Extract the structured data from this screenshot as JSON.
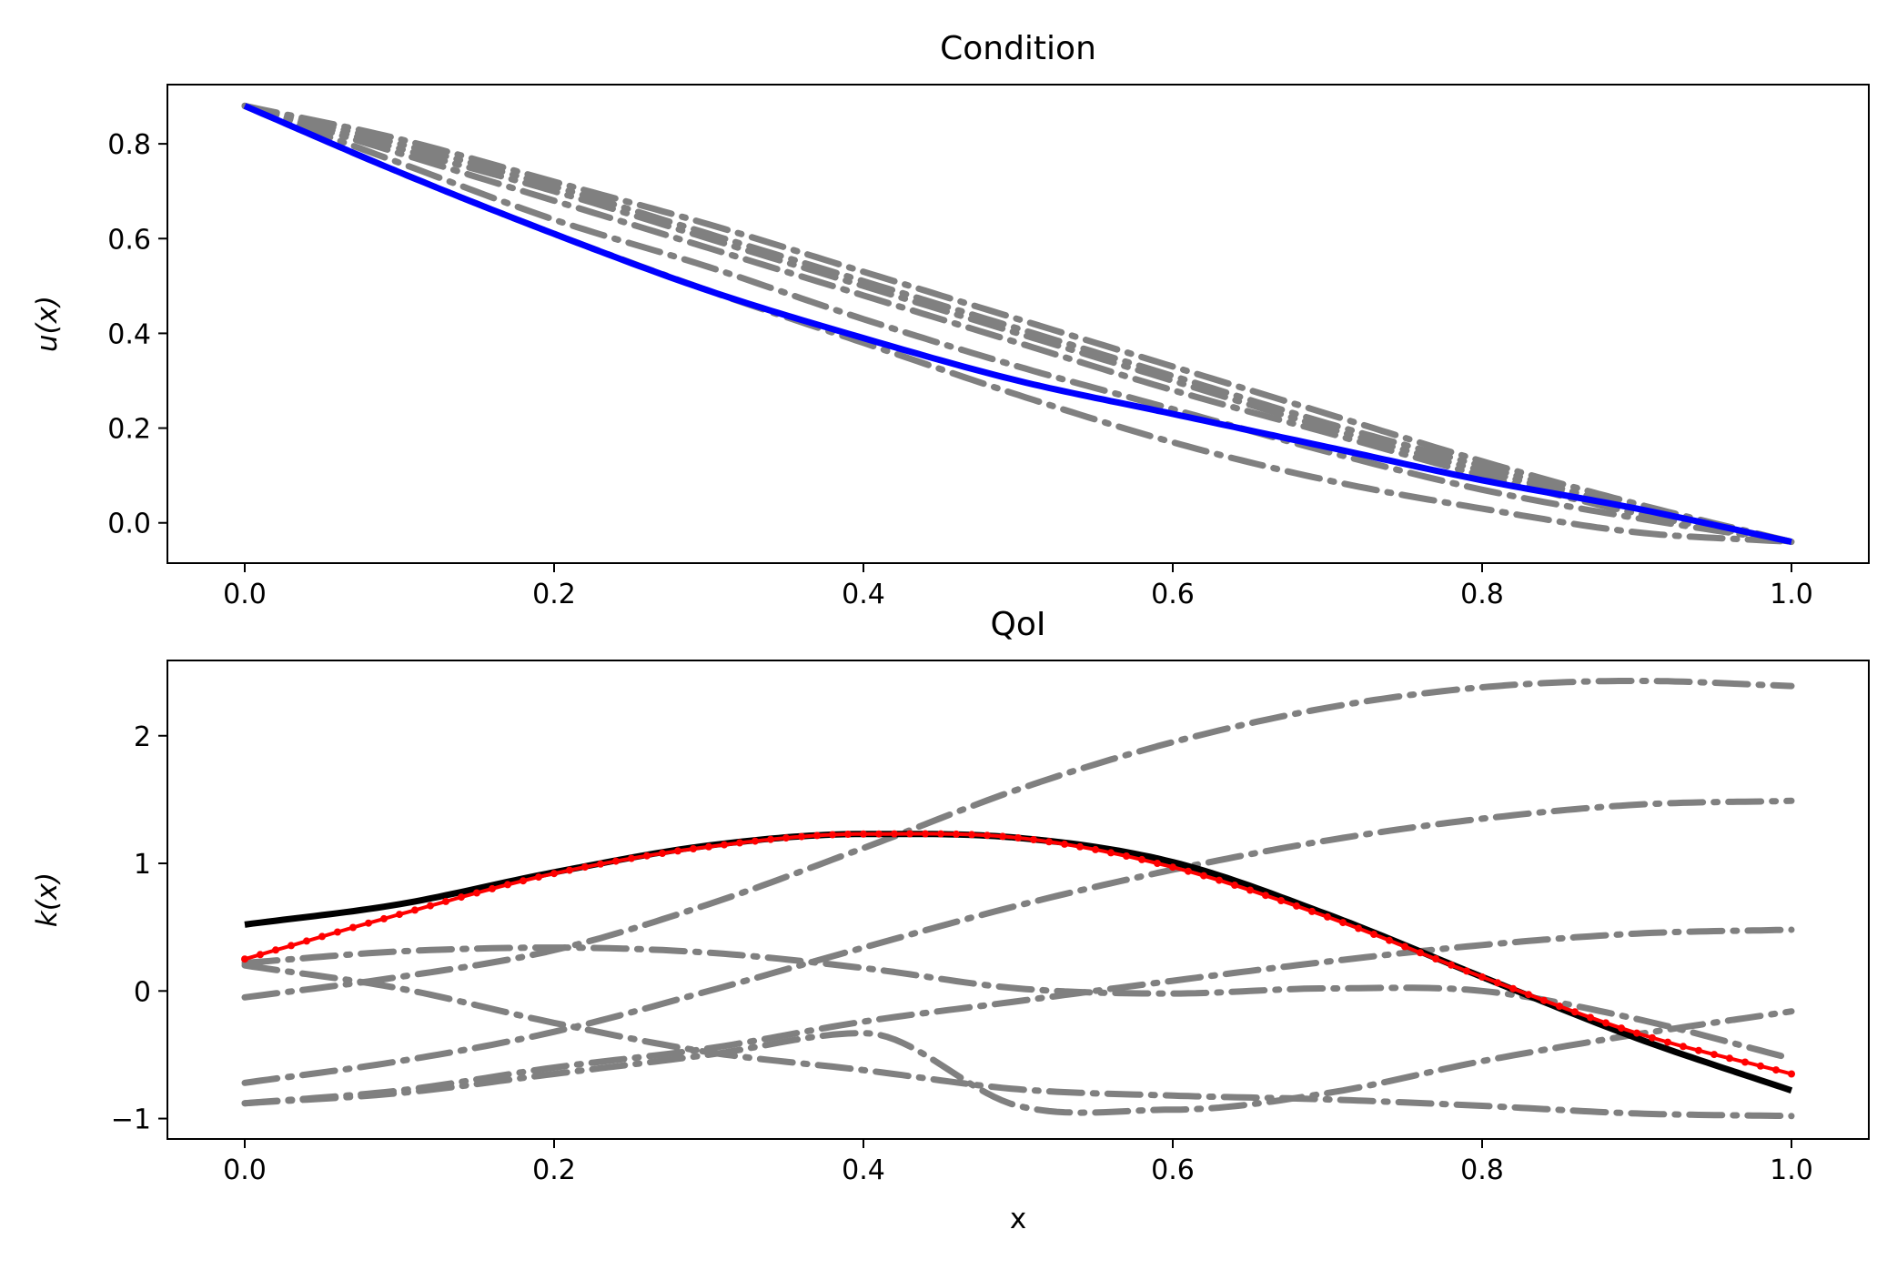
{
  "chart_data": [
    {
      "type": "line",
      "title": "Condition",
      "xlabel": "",
      "ylabel": "u(x)",
      "xlim": [
        -0.05,
        1.05
      ],
      "ylim": [
        -0.085,
        0.925
      ],
      "xticks": [
        0.0,
        0.2,
        0.4,
        0.6,
        0.8,
        1.0
      ],
      "xtick_labels": [
        "0.0",
        "0.2",
        "0.4",
        "0.6",
        "0.8",
        "1.0"
      ],
      "yticks": [
        0.0,
        0.2,
        0.4,
        0.6,
        0.8
      ],
      "ytick_labels": [
        "0.0",
        "0.2",
        "0.4",
        "0.6",
        "0.8"
      ],
      "grid": false,
      "x": [
        0.0,
        0.1,
        0.2,
        0.3,
        0.4,
        0.5,
        0.6,
        0.7,
        0.8,
        0.9,
        1.0
      ],
      "series": [
        {
          "style": "dashdot",
          "color": "#808080",
          "values": [
            0.88,
            0.81,
            0.72,
            0.63,
            0.53,
            0.43,
            0.33,
            0.23,
            0.13,
            0.04,
            -0.04
          ]
        },
        {
          "style": "dashdot",
          "color": "#808080",
          "values": [
            0.88,
            0.8,
            0.71,
            0.61,
            0.51,
            0.41,
            0.31,
            0.21,
            0.12,
            0.03,
            -0.04
          ]
        },
        {
          "style": "dashdot",
          "color": "#808080",
          "values": [
            0.88,
            0.79,
            0.7,
            0.6,
            0.5,
            0.4,
            0.3,
            0.2,
            0.11,
            0.03,
            -0.04
          ]
        },
        {
          "style": "dashdot",
          "color": "#808080",
          "values": [
            0.88,
            0.78,
            0.68,
            0.58,
            0.48,
            0.38,
            0.28,
            0.19,
            0.1,
            0.02,
            -0.04
          ]
        },
        {
          "style": "dashdot",
          "color": "#808080",
          "values": [
            0.88,
            0.76,
            0.64,
            0.54,
            0.43,
            0.33,
            0.24,
            0.15,
            0.07,
            0.01,
            -0.04
          ]
        },
        {
          "style": "dashdot",
          "color": "#808080",
          "values": [
            0.88,
            0.74,
            0.61,
            0.49,
            0.38,
            0.27,
            0.17,
            0.09,
            0.03,
            -0.02,
            -0.04
          ]
        },
        {
          "style": "solid",
          "color": "#0000ff",
          "values": [
            0.88,
            0.74,
            0.61,
            0.49,
            0.39,
            0.3,
            0.23,
            0.16,
            0.09,
            0.03,
            -0.04
          ]
        }
      ]
    },
    {
      "type": "line",
      "title": "QoI",
      "xlabel": "x",
      "ylabel": "k(x)",
      "xlim": [
        -0.05,
        1.05
      ],
      "ylim": [
        -1.16,
        2.59
      ],
      "xticks": [
        0.0,
        0.2,
        0.4,
        0.6,
        0.8,
        1.0
      ],
      "xtick_labels": [
        "0.0",
        "0.2",
        "0.4",
        "0.6",
        "0.8",
        "1.0"
      ],
      "yticks": [
        -1,
        0,
        1,
        2
      ],
      "ytick_labels": [
        "−1",
        "0",
        "1",
        "2"
      ],
      "grid": false,
      "x": [
        0.0,
        0.1,
        0.2,
        0.3,
        0.4,
        0.5,
        0.6,
        0.7,
        0.8,
        0.9,
        1.0
      ],
      "series": [
        {
          "style": "dashdot",
          "color": "#808080",
          "values": [
            -0.05,
            0.11,
            0.32,
            0.68,
            1.12,
            1.58,
            1.95,
            2.22,
            2.38,
            2.43,
            2.39
          ]
        },
        {
          "style": "dashdot",
          "color": "#808080",
          "values": [
            -0.72,
            -0.55,
            -0.32,
            0.0,
            0.34,
            0.67,
            0.95,
            1.18,
            1.35,
            1.46,
            1.49
          ]
        },
        {
          "style": "dashdot",
          "color": "#808080",
          "values": [
            0.22,
            0.31,
            0.34,
            0.3,
            0.18,
            0.02,
            -0.02,
            0.02,
            0.0,
            -0.22,
            -0.53
          ]
        },
        {
          "style": "dashdot",
          "color": "#808080",
          "values": [
            0.2,
            0.02,
            -0.25,
            -0.48,
            -0.62,
            -0.77,
            -0.82,
            -0.85,
            -0.9,
            -0.96,
            -0.98
          ]
        },
        {
          "style": "dashdot",
          "color": "#808080",
          "values": [
            -0.88,
            -0.78,
            -0.6,
            -0.45,
            -0.24,
            -0.08,
            0.08,
            0.23,
            0.36,
            0.45,
            0.48
          ]
        },
        {
          "style": "dashdot",
          "color": "#808080",
          "values": [
            -0.88,
            -0.8,
            -0.65,
            -0.5,
            -0.33,
            -0.9,
            -0.93,
            -0.8,
            -0.55,
            -0.34,
            -0.16
          ]
        },
        {
          "style": "solid",
          "color": "#000000",
          "values": [
            0.52,
            0.68,
            0.93,
            1.14,
            1.23,
            1.2,
            1.01,
            0.6,
            0.11,
            -0.37,
            -0.78
          ]
        },
        {
          "style": "solid-dotted",
          "color": "#ff0000",
          "values": [
            0.25,
            0.6,
            0.92,
            1.13,
            1.23,
            1.2,
            0.97,
            0.58,
            0.11,
            -0.33,
            -0.65
          ]
        }
      ]
    }
  ]
}
